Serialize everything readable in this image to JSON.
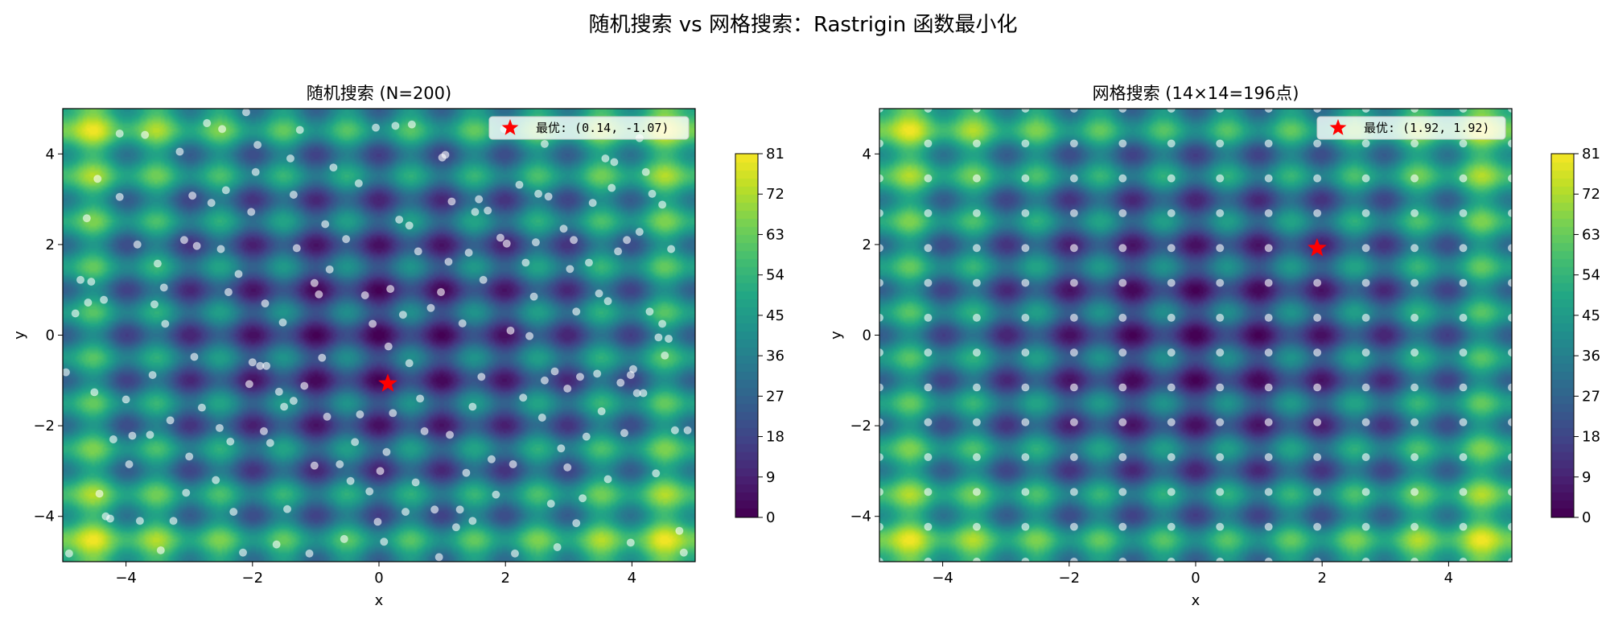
{
  "figure": {
    "title": "随机搜索 vs 网格搜索：Rastrigin 函数最小化"
  },
  "chart_data": [
    {
      "type": "contour",
      "title": "随机搜索 (N=200)",
      "xlabel": "x",
      "ylabel": "y",
      "xlim": [
        -5,
        5
      ],
      "ylim": [
        -5,
        5
      ],
      "xticks": [
        -4,
        -2,
        0,
        2,
        4
      ],
      "yticks": [
        -4,
        -2,
        0,
        2,
        4
      ],
      "function": "Rastrigin",
      "colormap": "viridis",
      "colorbar": {
        "ticks": [
          0,
          9,
          18,
          27,
          36,
          45,
          54,
          63,
          72,
          81
        ],
        "range": [
          0,
          81
        ]
      },
      "samples": {
        "n": 200,
        "points": [
          [
            -4.9,
            -4.82
          ],
          [
            -4.8,
            0.48
          ],
          [
            -4.72,
            1.22
          ],
          [
            -4.6,
            0.72
          ],
          [
            -4.55,
            1.18
          ],
          [
            -4.5,
            -1.26
          ],
          [
            -4.45,
            3.45
          ],
          [
            -4.35,
            0.78
          ],
          [
            -4.32,
            -4.0
          ],
          [
            -4.25,
            -4.05
          ],
          [
            -4.2,
            -2.3
          ],
          [
            -4.1,
            4.45
          ],
          [
            -4.0,
            -1.42
          ],
          [
            -3.9,
            -2.22
          ],
          [
            -3.82,
            2.0
          ],
          [
            -3.78,
            -4.1
          ],
          [
            -3.7,
            4.42
          ],
          [
            -3.62,
            -2.2
          ],
          [
            -3.55,
            0.68
          ],
          [
            -3.5,
            1.58
          ],
          [
            -3.45,
            -4.75
          ],
          [
            -3.4,
            1.05
          ],
          [
            -3.3,
            -1.88
          ],
          [
            -3.25,
            -4.1
          ],
          [
            -3.15,
            4.05
          ],
          [
            -3.08,
            2.1
          ],
          [
            -3.0,
            -2.68
          ],
          [
            -2.95,
            3.08
          ],
          [
            -2.88,
            1.97
          ],
          [
            -2.8,
            -1.6
          ],
          [
            -2.72,
            4.68
          ],
          [
            -2.65,
            2.92
          ],
          [
            -2.58,
            -3.2
          ],
          [
            -2.5,
            1.9
          ],
          [
            -2.48,
            4.55
          ],
          [
            -2.42,
            3.2
          ],
          [
            -2.35,
            -2.35
          ],
          [
            -2.3,
            -3.9
          ],
          [
            -2.22,
            1.35
          ],
          [
            -2.15,
            -4.8
          ],
          [
            -2.1,
            4.92
          ],
          [
            -2.05,
            -1.08
          ],
          [
            -2.0,
            -0.6
          ],
          [
            -1.95,
            3.6
          ],
          [
            -1.88,
            -0.68
          ],
          [
            -1.82,
            -2.12
          ],
          [
            -1.8,
            0.7
          ],
          [
            -1.78,
            -0.68
          ],
          [
            -1.72,
            -2.38
          ],
          [
            -1.62,
            -4.62
          ],
          [
            -1.58,
            -1.25
          ],
          [
            -1.5,
            -1.58
          ],
          [
            -1.45,
            -3.84
          ],
          [
            -1.4,
            3.9
          ],
          [
            -1.35,
            -1.45
          ],
          [
            -1.3,
            1.92
          ],
          [
            -1.25,
            4.53
          ],
          [
            -1.18,
            -1.12
          ],
          [
            -1.1,
            -4.82
          ],
          [
            -1.02,
            1.15
          ],
          [
            -0.95,
            0.9
          ],
          [
            -0.9,
            -0.5
          ],
          [
            -0.85,
            2.45
          ],
          [
            -0.78,
            1.45
          ],
          [
            -0.72,
            3.7
          ],
          [
            -0.62,
            -2.85
          ],
          [
            -0.55,
            -4.5
          ],
          [
            -0.45,
            -3.22
          ],
          [
            -0.38,
            -2.36
          ],
          [
            -0.3,
            -1.75
          ],
          [
            -0.22,
            0.88
          ],
          [
            -0.15,
            -3.45
          ],
          [
            -0.1,
            0.25
          ],
          [
            -0.05,
            4.58
          ],
          [
            0.02,
            -3.0
          ],
          [
            0.08,
            -4.56
          ],
          [
            0.12,
            -2.58
          ],
          [
            0.18,
            1.02
          ],
          [
            0.22,
            -1.72
          ],
          [
            0.26,
            4.62
          ],
          [
            0.32,
            2.55
          ],
          [
            0.38,
            0.45
          ],
          [
            0.42,
            -3.9
          ],
          [
            0.48,
            2.42
          ],
          [
            0.52,
            4.65
          ],
          [
            0.58,
            -3.25
          ],
          [
            0.65,
            -1.4
          ],
          [
            0.72,
            -2.12
          ],
          [
            0.82,
            0.6
          ],
          [
            0.88,
            -3.85
          ],
          [
            0.95,
            -4.9
          ],
          [
            1.0,
            3.92
          ],
          [
            1.05,
            3.98
          ],
          [
            1.1,
            1.62
          ],
          [
            1.15,
            2.95
          ],
          [
            1.22,
            -4.24
          ],
          [
            1.28,
            -3.85
          ],
          [
            1.32,
            0.26
          ],
          [
            1.38,
            -3.04
          ],
          [
            1.42,
            1.82
          ],
          [
            1.48,
            -4.1
          ],
          [
            1.52,
            2.72
          ],
          [
            1.58,
            3.0
          ],
          [
            1.65,
            1.22
          ],
          [
            1.72,
            2.75
          ],
          [
            1.78,
            -2.74
          ],
          [
            1.85,
            -3.52
          ],
          [
            1.92,
            2.15
          ],
          [
            2.02,
            2.02
          ],
          [
            2.08,
            0.1
          ],
          [
            2.15,
            -4.82
          ],
          [
            2.22,
            3.32
          ],
          [
            2.28,
            -1.38
          ],
          [
            2.32,
            1.6
          ],
          [
            2.38,
            -0.02
          ],
          [
            2.45,
            0.85
          ],
          [
            2.52,
            3.12
          ],
          [
            2.58,
            -1.82
          ],
          [
            2.62,
            -1.0
          ],
          [
            2.68,
            3.06
          ],
          [
            2.72,
            -3.72
          ],
          [
            2.78,
            -0.8
          ],
          [
            2.82,
            -4.68
          ],
          [
            2.88,
            -2.5
          ],
          [
            2.92,
            2.35
          ],
          [
            2.98,
            -1.18
          ],
          [
            3.02,
            1.46
          ],
          [
            3.08,
            2.1
          ],
          [
            3.12,
            0.52
          ],
          [
            3.18,
            -0.92
          ],
          [
            3.22,
            -3.6
          ],
          [
            3.28,
            -2.24
          ],
          [
            3.32,
            1.6
          ],
          [
            3.38,
            2.92
          ],
          [
            3.45,
            -0.85
          ],
          [
            3.52,
            -1.68
          ],
          [
            3.58,
            3.9
          ],
          [
            3.62,
            0.75
          ],
          [
            3.68,
            3.25
          ],
          [
            3.72,
            3.82
          ],
          [
            3.78,
            1.85
          ],
          [
            3.82,
            -1.05
          ],
          [
            3.88,
            -2.16
          ],
          [
            3.92,
            2.1
          ],
          [
            3.98,
            -0.88
          ],
          [
            4.02,
            -0.75
          ],
          [
            4.08,
            -1.28
          ],
          [
            4.12,
            2.28
          ],
          [
            4.18,
            -1.28
          ],
          [
            4.22,
            3.6
          ],
          [
            4.28,
            0.52
          ],
          [
            4.32,
            3.12
          ],
          [
            4.38,
            -3.05
          ],
          [
            4.42,
            -0.05
          ],
          [
            4.48,
            0.25
          ],
          [
            4.52,
            -0.45
          ],
          [
            4.58,
            -0.08
          ],
          [
            4.62,
            1.9
          ],
          [
            4.68,
            -2.1
          ],
          [
            4.75,
            -4.32
          ],
          [
            4.82,
            -4.8
          ],
          [
            4.88,
            -2.1
          ],
          [
            -4.95,
            -0.82
          ],
          [
            -4.42,
            -3.5
          ],
          [
            -3.95,
            -2.85
          ],
          [
            -3.38,
            0.25
          ],
          [
            -2.92,
            -0.48
          ],
          [
            -2.38,
            0.95
          ],
          [
            -1.92,
            4.2
          ],
          [
            -1.35,
            3.1
          ],
          [
            -0.82,
            -1.8
          ],
          [
            -0.32,
            3.35
          ],
          [
            0.15,
            -0.25
          ],
          [
            0.62,
            1.85
          ],
          [
            1.12,
            -2.2
          ],
          [
            1.62,
            -0.92
          ],
          [
            2.12,
            -2.85
          ],
          [
            2.62,
            4.22
          ],
          [
            3.12,
            -4.15
          ],
          [
            3.62,
            -3.18
          ],
          [
            4.12,
            4.35
          ],
          [
            -4.62,
            2.58
          ],
          [
            -4.1,
            3.05
          ],
          [
            -3.58,
            -0.88
          ],
          [
            -3.05,
            -3.48
          ],
          [
            -2.52,
            -2.05
          ],
          [
            -2.02,
            2.72
          ],
          [
            -1.52,
            0.28
          ],
          [
            -1.02,
            -2.88
          ],
          [
            -0.52,
            2.12
          ],
          [
            -0.02,
            -4.12
          ],
          [
            0.48,
            -0.62
          ],
          [
            0.98,
            0.95
          ],
          [
            1.48,
            -1.58
          ],
          [
            1.98,
            4.55
          ],
          [
            2.48,
            2.05
          ],
          [
            2.98,
            -2.92
          ],
          [
            3.48,
            0.92
          ],
          [
            3.98,
            -4.58
          ],
          [
            4.48,
            2.88
          ]
        ]
      },
      "best": {
        "x": 0.14,
        "y": -1.07,
        "legend_label": "最优: (0.14, -1.07)"
      }
    },
    {
      "type": "contour",
      "title": "网格搜索 (14×14=196点)",
      "xlabel": "x",
      "ylabel": "y",
      "xlim": [
        -5,
        5
      ],
      "ylim": [
        -5,
        5
      ],
      "xticks": [
        -4,
        -2,
        0,
        2,
        4
      ],
      "yticks": [
        -4,
        -2,
        0,
        2,
        4
      ],
      "function": "Rastrigin",
      "colormap": "viridis",
      "colorbar": {
        "ticks": [
          0,
          9,
          18,
          27,
          36,
          45,
          54,
          63,
          72,
          81
        ],
        "range": [
          0,
          81
        ]
      },
      "samples": {
        "grid": [
          14,
          14
        ],
        "n": 196,
        "min": -5,
        "max": 5
      },
      "best": {
        "x": 1.92,
        "y": 1.92,
        "legend_label": "最优: (1.92, 1.92)"
      }
    }
  ]
}
